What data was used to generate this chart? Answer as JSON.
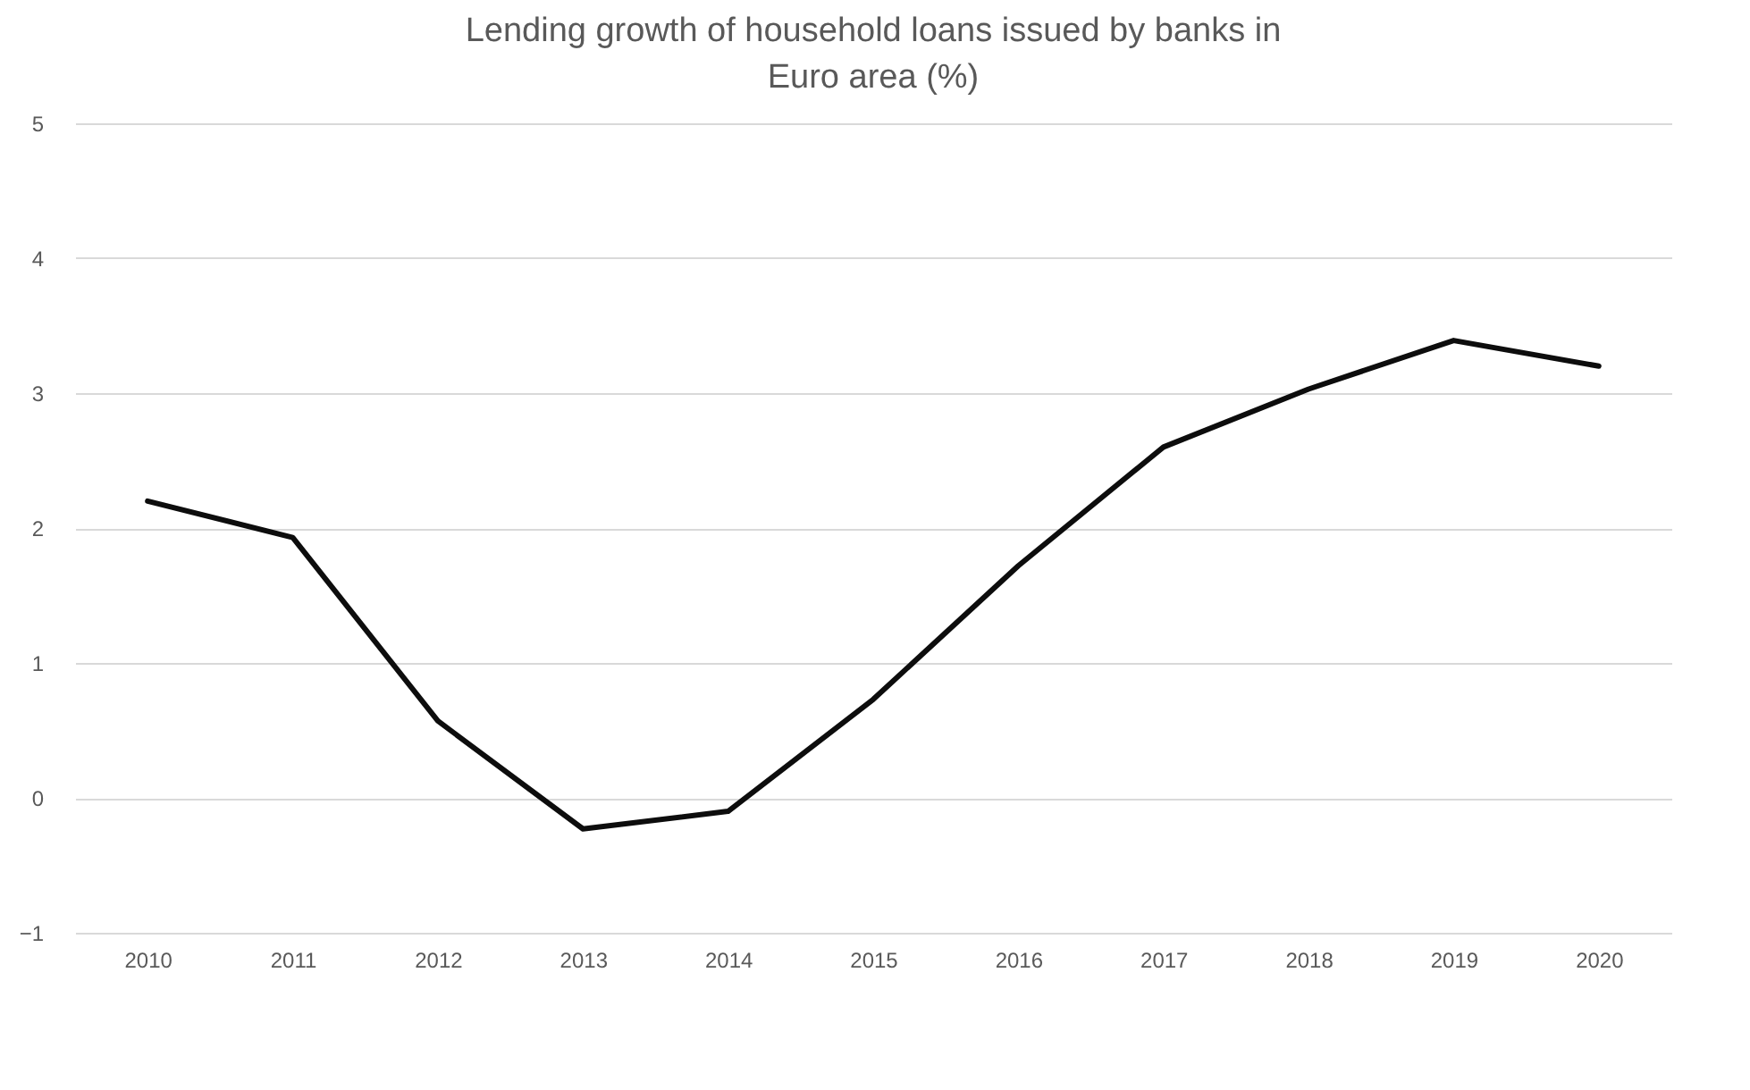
{
  "chart_data": {
    "type": "line",
    "title": "Lending growth of household loans issued by banks in Euro area (%)",
    "categories": [
      "2010",
      "2011",
      "2012",
      "2013",
      "2014",
      "2015",
      "2016",
      "2017",
      "2018",
      "2019",
      "2020"
    ],
    "series": [
      {
        "color": "#0d0d0d",
        "values": [
          2.2,
          1.93,
          0.57,
          -0.23,
          -0.1,
          0.73,
          1.72,
          2.6,
          3.03,
          3.39,
          3.2
        ]
      }
    ],
    "ylim": [
      -1,
      5
    ],
    "yticks": [
      -1,
      0,
      1,
      2,
      3,
      4,
      5
    ],
    "grid": "y",
    "marker": "none",
    "line_style": "solid"
  }
}
